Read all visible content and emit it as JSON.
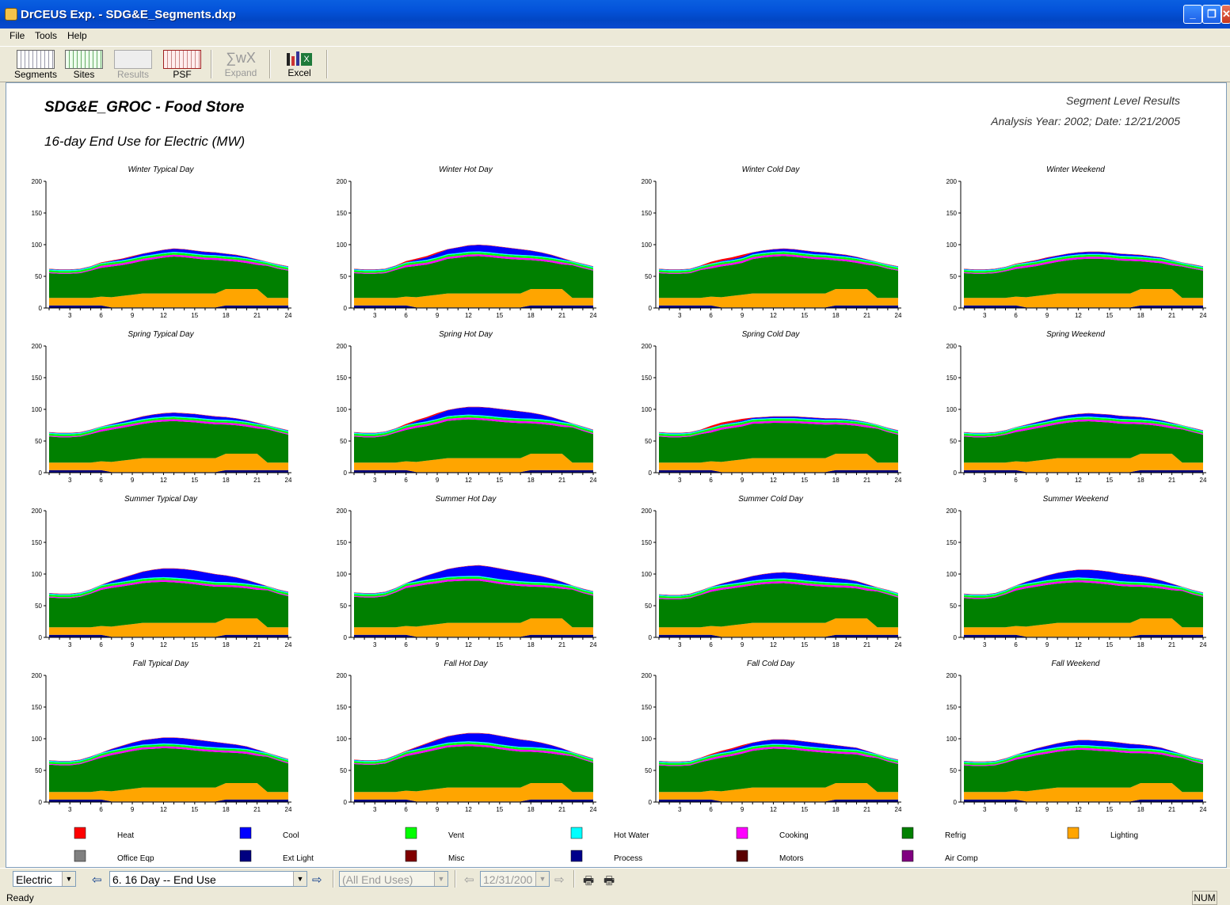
{
  "window": {
    "title": "DrCEUS Exp. - SDG&E_Segments.dxp"
  },
  "menu": [
    "File",
    "Tools",
    "Help"
  ],
  "toolbar": {
    "segments": "Segments",
    "sites": "Sites",
    "results": "Results",
    "psf": "PSF",
    "expand": "Expand",
    "excel": "Excel"
  },
  "report": {
    "title": "SDG&E_GROC - Food Store",
    "subtitle": "16-day End Use for Electric (MW)",
    "header_right_1": "Segment Level Results",
    "header_right_2": "Analysis Year: 2002; Date: 12/21/2005"
  },
  "chart_data": {
    "type": "area",
    "stacked": true,
    "x": [
      1,
      2,
      3,
      4,
      5,
      6,
      7,
      8,
      9,
      10,
      11,
      12,
      13,
      14,
      15,
      16,
      17,
      18,
      19,
      20,
      21,
      22,
      23,
      24
    ],
    "x_ticks": [
      3,
      6,
      9,
      12,
      15,
      18,
      21,
      24
    ],
    "ylim": [
      0,
      200
    ],
    "y_ticks": [
      0,
      50,
      100,
      150,
      200
    ],
    "series_order": [
      "Ext Light",
      "Lighting",
      "Refrig",
      "Cooking",
      "Vent",
      "Hot Water",
      "Cool",
      "Heat"
    ],
    "panels": [
      {
        "title": "Winter Typical Day",
        "total": [
          62,
          61,
          61,
          62,
          66,
          72,
          75,
          78,
          82,
          86,
          89,
          92,
          94,
          93,
          91,
          89,
          88,
          86,
          84,
          81,
          77,
          73,
          69,
          66
        ],
        "cool_scale": 0.6,
        "heat": 1
      },
      {
        "title": "Winter Hot Day",
        "total": [
          62,
          61,
          61,
          62,
          67,
          74,
          78,
          82,
          88,
          93,
          96,
          99,
          100,
          99,
          97,
          95,
          93,
          91,
          88,
          84,
          79,
          74,
          70,
          66
        ],
        "cool_scale": 1.3,
        "heat": 2
      },
      {
        "title": "Winter Cold Day",
        "total": [
          62,
          61,
          61,
          62,
          67,
          73,
          77,
          80,
          84,
          88,
          91,
          93,
          94,
          93,
          91,
          89,
          88,
          86,
          84,
          81,
          77,
          73,
          69,
          66
        ],
        "cool_scale": 0.5,
        "heat": 3
      },
      {
        "title": "Winter Weekend",
        "total": [
          62,
          61,
          61,
          62,
          65,
          70,
          73,
          76,
          80,
          83,
          86,
          88,
          89,
          89,
          88,
          86,
          85,
          84,
          82,
          80,
          76,
          72,
          69,
          66
        ],
        "cool_scale": 0.4,
        "heat": 1
      },
      {
        "title": "Spring Typical Day",
        "total": [
          64,
          63,
          63,
          64,
          68,
          73,
          77,
          81,
          85,
          89,
          92,
          94,
          95,
          94,
          93,
          91,
          89,
          88,
          86,
          83,
          79,
          75,
          71,
          67
        ],
        "cool_scale": 0.7,
        "heat": 0
      },
      {
        "title": "Spring Hot Day",
        "total": [
          64,
          63,
          63,
          65,
          70,
          77,
          83,
          88,
          94,
          99,
          102,
          104,
          104,
          103,
          101,
          99,
          97,
          95,
          92,
          88,
          83,
          78,
          73,
          68
        ],
        "cool_scale": 1.6,
        "heat": 2
      },
      {
        "title": "Spring Cold Day",
        "total": [
          64,
          63,
          63,
          64,
          68,
          74,
          79,
          82,
          85,
          87,
          88,
          89,
          89,
          89,
          88,
          87,
          86,
          86,
          85,
          83,
          80,
          76,
          71,
          67
        ],
        "cool_scale": 0.3,
        "heat": 3
      },
      {
        "title": "Spring Weekend",
        "total": [
          64,
          63,
          63,
          64,
          67,
          72,
          76,
          80,
          84,
          88,
          91,
          93,
          94,
          93,
          92,
          90,
          89,
          88,
          86,
          83,
          79,
          75,
          71,
          67
        ],
        "cool_scale": 0.6,
        "heat": 0
      },
      {
        "title": "Summer Typical Day",
        "total": [
          70,
          69,
          69,
          71,
          76,
          83,
          89,
          94,
          99,
          104,
          107,
          109,
          109,
          108,
          106,
          103,
          100,
          98,
          95,
          91,
          86,
          81,
          76,
          72
        ],
        "cool_scale": 1.8,
        "heat": 0
      },
      {
        "title": "Summer Hot Day",
        "total": [
          71,
          70,
          70,
          72,
          78,
          86,
          92,
          98,
          103,
          108,
          111,
          113,
          114,
          112,
          109,
          106,
          103,
          100,
          97,
          93,
          88,
          82,
          77,
          73
        ],
        "cool_scale": 2.1,
        "heat": 0
      },
      {
        "title": "Summer Cold Day",
        "total": [
          68,
          67,
          67,
          69,
          74,
          80,
          85,
          89,
          93,
          97,
          100,
          102,
          103,
          102,
          100,
          98,
          96,
          94,
          92,
          89,
          84,
          79,
          75,
          70
        ],
        "cool_scale": 1.2,
        "heat": 0
      },
      {
        "title": "Summer Weekend",
        "total": [
          69,
          68,
          68,
          70,
          75,
          82,
          88,
          93,
          98,
          102,
          105,
          107,
          107,
          106,
          104,
          101,
          99,
          97,
          94,
          90,
          85,
          80,
          75,
          71
        ],
        "cool_scale": 1.6,
        "heat": 0
      },
      {
        "title": "Fall Typical Day",
        "total": [
          66,
          65,
          65,
          67,
          72,
          78,
          84,
          89,
          94,
          98,
          100,
          102,
          102,
          101,
          99,
          97,
          95,
          93,
          91,
          88,
          83,
          78,
          73,
          68
        ],
        "cool_scale": 1.2,
        "heat": 0
      },
      {
        "title": "Fall Hot Day",
        "total": [
          67,
          66,
          66,
          68,
          74,
          81,
          87,
          93,
          99,
          104,
          107,
          109,
          109,
          108,
          105,
          102,
          99,
          97,
          94,
          90,
          85,
          79,
          74,
          69
        ],
        "cool_scale": 1.7,
        "heat": 1
      },
      {
        "title": "Fall Cold Day",
        "total": [
          65,
          64,
          64,
          65,
          70,
          76,
          81,
          85,
          90,
          94,
          97,
          99,
          99,
          98,
          96,
          94,
          92,
          90,
          88,
          86,
          81,
          76,
          71,
          67
        ],
        "cool_scale": 0.9,
        "heat": 2
      },
      {
        "title": "Fall Weekend",
        "total": [
          65,
          64,
          64,
          65,
          69,
          75,
          80,
          85,
          89,
          93,
          96,
          98,
          98,
          97,
          96,
          94,
          92,
          91,
          89,
          86,
          81,
          76,
          71,
          67
        ],
        "cool_scale": 1.0,
        "heat": 0
      }
    ],
    "legend": [
      {
        "name": "Heat",
        "color": "#FF0000"
      },
      {
        "name": "Cool",
        "color": "#0000FF"
      },
      {
        "name": "Vent",
        "color": "#00FF00"
      },
      {
        "name": "Hot Water",
        "color": "#00FFFF"
      },
      {
        "name": "Cooking",
        "color": "#FF00FF"
      },
      {
        "name": "Refrig",
        "color": "#008000"
      },
      {
        "name": "Lighting",
        "color": "#FFA500"
      },
      {
        "name": "Office Eqp",
        "color": "#808080"
      },
      {
        "name": "Ext Light",
        "color": "#000080"
      },
      {
        "name": "Misc",
        "color": "#800000"
      },
      {
        "name": "Process",
        "color": "#00008B"
      },
      {
        "name": "Motors",
        "color": "#5A0000"
      },
      {
        "name": "Air Comp",
        "color": "#800080"
      }
    ]
  },
  "bottom": {
    "fuel": "Electric",
    "report": "6. 16 Day -- End Use",
    "end_uses": "(All End Uses)",
    "date": "12/31/200"
  },
  "status": {
    "left": "Ready",
    "num": "NUM"
  }
}
